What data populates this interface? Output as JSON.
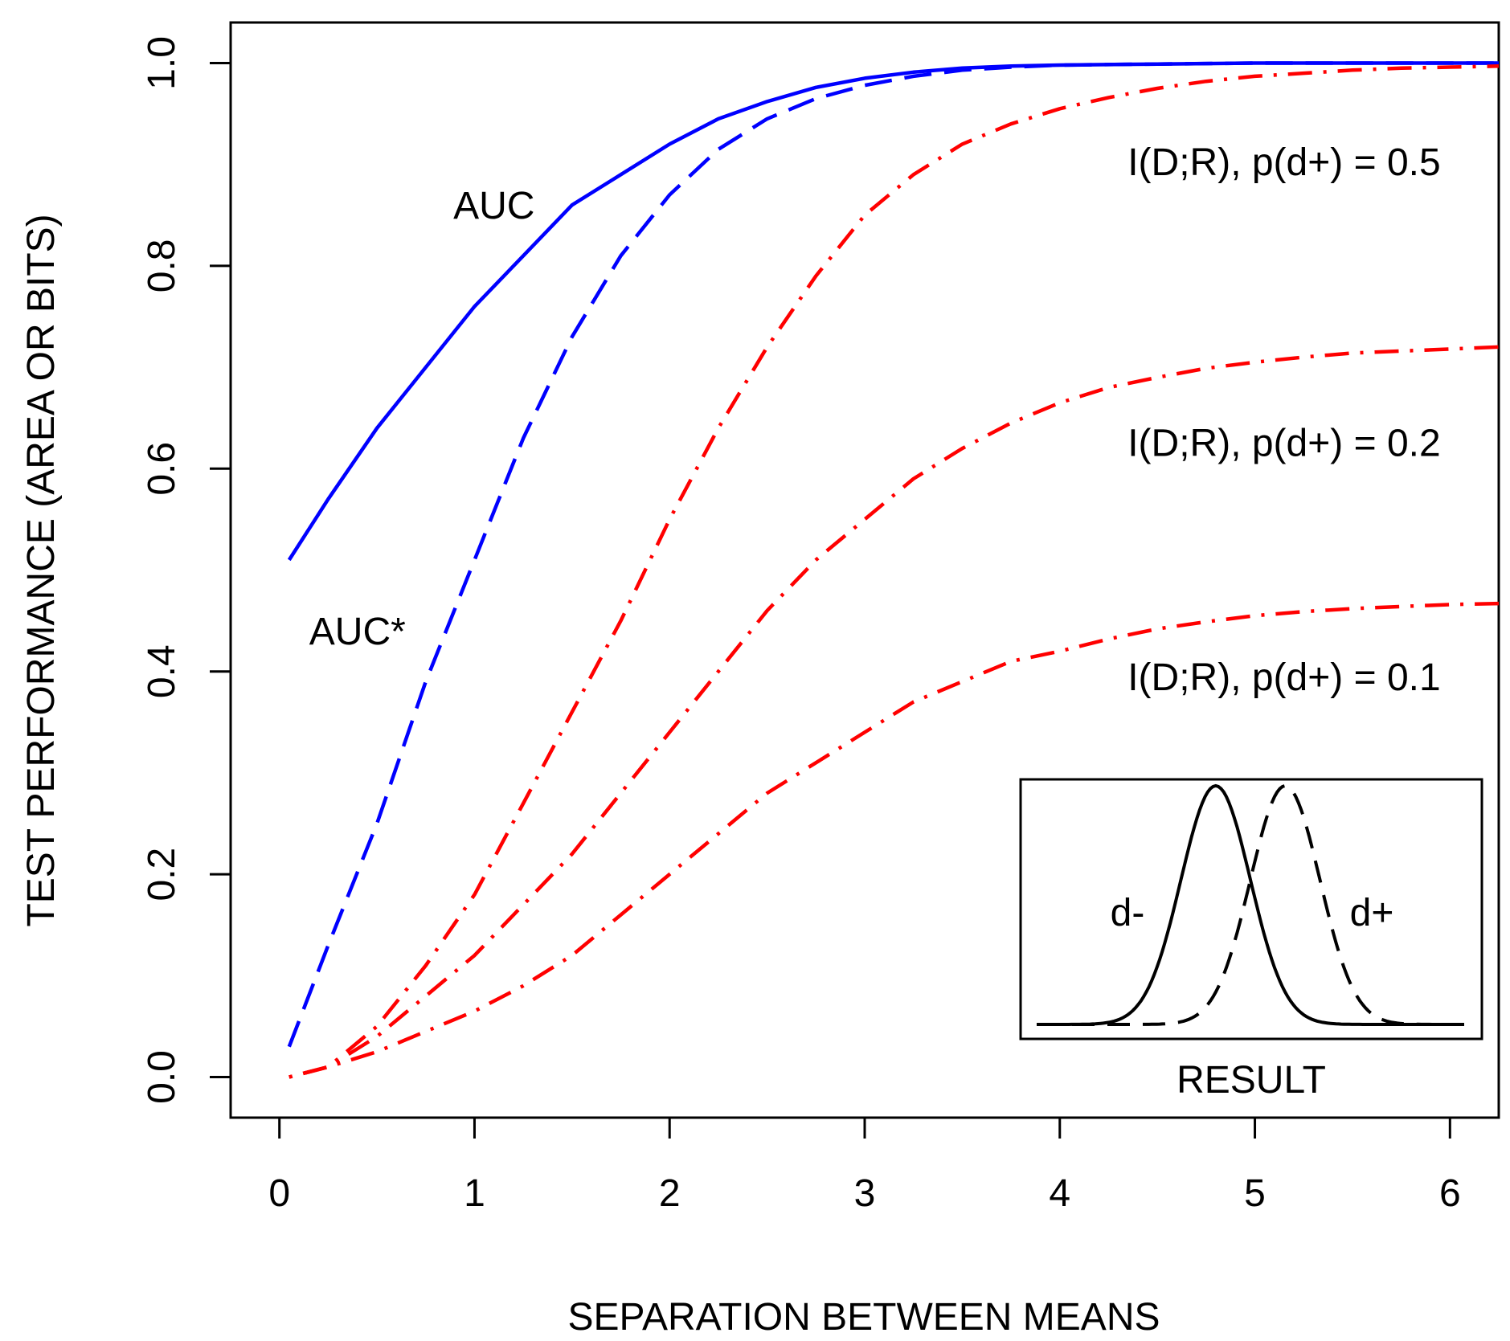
{
  "chart_data": {
    "type": "line",
    "xlabel": "SEPARATION BETWEEN MEANS",
    "ylabel": "TEST PERFORMANCE (AREA OR BITS)",
    "xlim": [
      -0.25,
      6.25
    ],
    "ylim": [
      -0.04,
      1.04
    ],
    "x_ticks": [
      0,
      1,
      2,
      3,
      4,
      5,
      6
    ],
    "x_tick_labels": [
      "0",
      "1",
      "2",
      "3",
      "4",
      "5",
      "6"
    ],
    "y_ticks": [
      0.0,
      0.2,
      0.4,
      0.6,
      0.8,
      1.0
    ],
    "y_tick_labels": [
      "0.0",
      "0.2",
      "0.4",
      "0.6",
      "0.8",
      "1.0"
    ],
    "colors": {
      "auc": "#0000ff",
      "info": "#ff0000",
      "inset": "#000000"
    },
    "series": [
      {
        "name": "AUC",
        "label": "AUC",
        "label_at": [
          1.1,
          0.86
        ],
        "style": "solid",
        "color_key": "auc",
        "x": [
          0.05,
          0.25,
          0.5,
          0.75,
          1.0,
          1.25,
          1.5,
          1.75,
          2.0,
          2.25,
          2.5,
          2.75,
          3.0,
          3.25,
          3.5,
          3.75,
          4.0,
          4.5,
          5.0,
          5.5,
          6.0,
          6.25
        ],
        "y": [
          0.51,
          0.57,
          0.64,
          0.7,
          0.76,
          0.81,
          0.86,
          0.89,
          0.92,
          0.945,
          0.962,
          0.976,
          0.985,
          0.991,
          0.995,
          0.997,
          0.998,
          0.999,
          1.0,
          1.0,
          1.0,
          1.0
        ]
      },
      {
        "name": "AUC*",
        "label": "AUC*",
        "label_at": [
          0.4,
          0.44
        ],
        "style": "dashed",
        "color_key": "auc",
        "x": [
          0.05,
          0.25,
          0.5,
          0.75,
          1.0,
          1.25,
          1.5,
          1.75,
          2.0,
          2.25,
          2.5,
          2.75,
          3.0,
          3.25,
          3.5,
          3.75,
          4.0,
          4.5,
          5.0,
          5.5,
          6.0,
          6.25
        ],
        "y": [
          0.03,
          0.13,
          0.25,
          0.39,
          0.51,
          0.63,
          0.73,
          0.81,
          0.87,
          0.915,
          0.945,
          0.965,
          0.978,
          0.987,
          0.993,
          0.996,
          0.998,
          0.999,
          1.0,
          1.0,
          1.0,
          1.0
        ]
      },
      {
        "name": "I(D;R), p(d+) = 0.5",
        "label": "I(D;R), p(d+) = 0.5",
        "label_at": [
          5.15,
          0.903
        ],
        "style": "dotdash",
        "color_key": "info",
        "x": [
          0.05,
          0.25,
          0.5,
          0.75,
          1.0,
          1.25,
          1.5,
          1.75,
          2.0,
          2.25,
          2.5,
          2.75,
          3.0,
          3.25,
          3.5,
          3.75,
          4.0,
          4.25,
          4.5,
          4.75,
          5.0,
          5.25,
          5.5,
          5.75,
          6.0,
          6.25
        ],
        "y": [
          0.0,
          0.01,
          0.05,
          0.11,
          0.18,
          0.27,
          0.36,
          0.45,
          0.55,
          0.64,
          0.72,
          0.79,
          0.85,
          0.89,
          0.92,
          0.94,
          0.955,
          0.966,
          0.975,
          0.982,
          0.987,
          0.99,
          0.993,
          0.995,
          0.996,
          0.997
        ]
      },
      {
        "name": "I(D;R), p(d+) = 0.2",
        "label": "I(D;R), p(d+) = 0.2",
        "label_at": [
          5.15,
          0.626
        ],
        "style": "dotdash",
        "color_key": "info",
        "x": [
          0.05,
          0.25,
          0.5,
          0.75,
          1.0,
          1.25,
          1.5,
          1.75,
          2.0,
          2.25,
          2.5,
          2.75,
          3.0,
          3.25,
          3.5,
          3.75,
          4.0,
          4.25,
          4.5,
          4.75,
          5.0,
          5.25,
          5.5,
          5.75,
          6.0,
          6.25
        ],
        "y": [
          0.0,
          0.01,
          0.04,
          0.08,
          0.12,
          0.17,
          0.22,
          0.28,
          0.34,
          0.4,
          0.46,
          0.51,
          0.55,
          0.59,
          0.62,
          0.645,
          0.665,
          0.68,
          0.69,
          0.699,
          0.705,
          0.71,
          0.714,
          0.716,
          0.718,
          0.72
        ]
      },
      {
        "name": "I(D;R), p(d+) = 0.1",
        "label": "I(D;R), p(d+) = 0.1",
        "label_at": [
          5.15,
          0.395
        ],
        "style": "dotdash",
        "color_key": "info",
        "x": [
          0.05,
          0.25,
          0.5,
          0.75,
          1.0,
          1.25,
          1.5,
          1.75,
          2.0,
          2.25,
          2.5,
          2.75,
          3.0,
          3.25,
          3.5,
          3.75,
          4.0,
          4.25,
          4.5,
          4.75,
          5.0,
          5.25,
          5.5,
          5.75,
          6.0,
          6.25
        ],
        "y": [
          0.0,
          0.01,
          0.025,
          0.045,
          0.065,
          0.09,
          0.12,
          0.16,
          0.2,
          0.24,
          0.28,
          0.31,
          0.34,
          0.37,
          0.39,
          0.41,
          0.42,
          0.432,
          0.442,
          0.449,
          0.455,
          0.459,
          0.462,
          0.464,
          0.466,
          0.467
        ]
      }
    ],
    "inset": {
      "xlabel": "RESULT",
      "labels": {
        "neg": "d-",
        "pos": "d+"
      },
      "neg_mean": -0.65,
      "pos_mean": 0.65,
      "sd": 0.65,
      "xrange": [
        -4,
        4
      ]
    }
  }
}
